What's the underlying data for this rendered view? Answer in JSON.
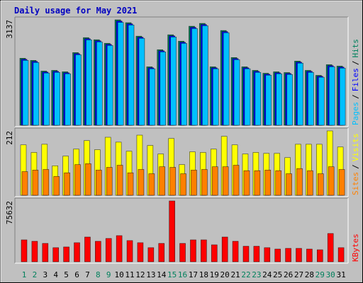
{
  "chart_data": {
    "type": "bar",
    "title": "Daily usage for May 2021",
    "title_color": "#0000C0",
    "categories": [
      "1",
      "2",
      "3",
      "4",
      "5",
      "6",
      "7",
      "8",
      "9",
      "10",
      "11",
      "12",
      "13",
      "14",
      "15",
      "16",
      "17",
      "18",
      "19",
      "20",
      "21",
      "22",
      "23",
      "24",
      "25",
      "26",
      "27",
      "28",
      "29",
      "30",
      "31"
    ],
    "category_colors": [
      "#00805C",
      "#00805C",
      "#000000",
      "#000000",
      "#000000",
      "#000000",
      "#000000",
      "#00805C",
      "#00805C",
      "#000000",
      "#000000",
      "#000000",
      "#000000",
      "#000000",
      "#00805C",
      "#00805C",
      "#000000",
      "#000000",
      "#000000",
      "#000000",
      "#000000",
      "#00805C",
      "#00805C",
      "#000000",
      "#000000",
      "#000000",
      "#000000",
      "#000000",
      "#00805C",
      "#00805C",
      "#000000"
    ],
    "legend_separator": "/",
    "panels": [
      {
        "ylim": [
          0,
          3137
        ],
        "yticks": [
          3137
        ],
        "series": [
          {
            "name": "Hits",
            "color": "#00805C",
            "values": [
              1992,
              1929,
              1611,
              1632,
              1590,
              2162,
              2607,
              2544,
              2438,
              3137,
              3052,
              2650,
              1738,
              2247,
              2692,
              2501,
              2946,
              3031,
              1738,
              2819,
              2014,
              1738,
              1632,
              1547,
              1590,
              1568,
              1908,
              1632,
              1484,
              1802,
              1759
            ]
          },
          {
            "name": "Files",
            "color": "#0000FF",
            "values": [
              1962,
              1899,
              1583,
              1603,
              1561,
              2130,
              2574,
              2512,
              2406,
              3100,
              3018,
              2618,
              1709,
              2215,
              2659,
              2469,
              2912,
              2997,
              1709,
              2786,
              1983,
              1709,
              1603,
              1519,
              1561,
              1540,
              1878,
              1603,
              1457,
              1772,
              1730
            ]
          },
          {
            "name": "Pages",
            "color": "#00C0FF",
            "values": [
              1931,
              1868,
              1554,
              1574,
              1532,
              2098,
              2541,
              2480,
              2374,
              3062,
              2983,
              2586,
              1680,
              2183,
              2626,
              2437,
              2878,
              2962,
              1680,
              2753,
              1952,
              1680,
              1574,
              1490,
              1532,
              1511,
              1848,
              1574,
              1429,
              1741,
              1700
            ]
          }
        ]
      },
      {
        "ylim": [
          0,
          212
        ],
        "yticks": [
          212
        ],
        "series": [
          {
            "name": "Visits",
            "color": "#FFFF00",
            "values": [
              166,
              141,
              168,
              97,
              129,
              152,
              180,
              150,
              191,
              175,
              145,
              198,
              164,
              136,
              187,
              101,
              143,
              141,
              152,
              194,
              166,
              136,
              141,
              138,
              138,
              124,
              168,
              168,
              168,
              212,
              159
            ]
          },
          {
            "name": "Sites",
            "color": "#FF8000",
            "values": [
              78,
              83,
              85,
              62,
              74,
              101,
              104,
              83,
              92,
              99,
              74,
              85,
              71,
              94,
              92,
              71,
              83,
              85,
              94,
              94,
              99,
              81,
              81,
              83,
              81,
              71,
              88,
              81,
              71,
              94,
              85
            ]
          }
        ]
      },
      {
        "ylim": [
          0,
          75632
        ],
        "yticks": [
          75632
        ],
        "series": [
          {
            "name": "KBytes",
            "color": "#FF0000",
            "values": [
              27263,
              25504,
              22866,
              17589,
              18469,
              23745,
              30781,
              25504,
              29022,
              32540,
              26383,
              23745,
              17589,
              22866,
              75632,
              22866,
              27263,
              27263,
              21107,
              30781,
              25504,
              19348,
              19348,
              17589,
              15830,
              16710,
              16710,
              15830,
              14951,
              35177,
              17589
            ]
          }
        ]
      }
    ]
  }
}
